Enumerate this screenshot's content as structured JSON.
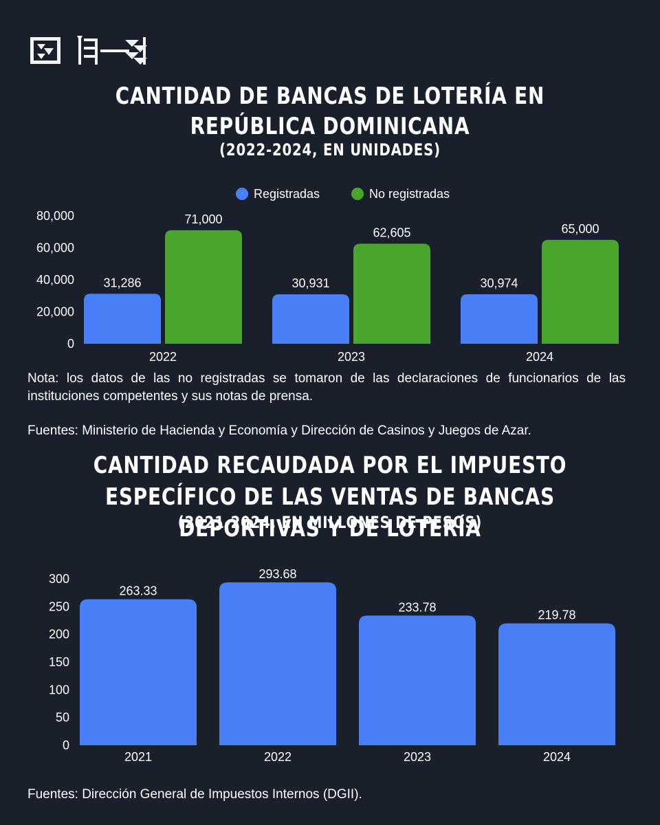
{
  "colors": {
    "background": "#19202c",
    "registradas": "#4a80f7",
    "no_registradas": "#4aa52c",
    "text": "#ffffff"
  },
  "logo": {
    "icon": "cuneiform-logo"
  },
  "chart1": {
    "title": "Cantidad de bancas de lotería en República Dominicana",
    "subtitle": "(2022-2024, en unidades)",
    "note": "Nota: los datos de las no registradas se tomaron de las declaraciones de funcionarios de las instituciones competentes y sus notas de prensa.",
    "source": "Fuentes: Ministerio de Hacienda y Economía y Dirección de Casinos y Juegos de Azar."
  },
  "chart2": {
    "title": "Cantidad recaudada por el impuesto específico de las ventas de bancas deportivas y de lotería",
    "subtitle": "(2021-2024, en millones de pesos)",
    "source": "Fuentes: Dirección General de Impuestos Internos (DGII)."
  },
  "chart_data": [
    {
      "type": "bar",
      "title": "Cantidad de bancas de lotería en República Dominicana",
      "subtitle": "(2022-2024, en unidades)",
      "categories": [
        "2022",
        "2023",
        "2024"
      ],
      "series": [
        {
          "name": "Registradas",
          "values": [
            31286,
            30931,
            30974
          ],
          "labels": [
            "31,286",
            "30,931",
            "30,974"
          ],
          "color": "#4a80f7"
        },
        {
          "name": "No registradas",
          "values": [
            71000,
            62605,
            65000
          ],
          "labels": [
            "71,000",
            "62,605",
            "65,000"
          ],
          "color": "#4aa52c"
        }
      ],
      "yticks": [
        "0",
        "20,000",
        "40,000",
        "60,000",
        "80,000"
      ],
      "ylim": [
        0,
        80000
      ],
      "legend": "top-center",
      "grid": false
    },
    {
      "type": "bar",
      "title": "Cantidad recaudada por el impuesto específico de las ventas de bancas deportivas y de lotería",
      "subtitle": "(2021-2024, en millones de pesos)",
      "categories": [
        "2021",
        "2022",
        "2023",
        "2024"
      ],
      "values": [
        263.33,
        293.68,
        233.78,
        219.78
      ],
      "labels": [
        "263.33",
        "293.68",
        "233.78",
        "219.78"
      ],
      "color": "#4a80f7",
      "yticks": [
        "0",
        "50",
        "100",
        "150",
        "200",
        "250",
        "300"
      ],
      "ylim": [
        0,
        300
      ],
      "grid": false
    }
  ]
}
